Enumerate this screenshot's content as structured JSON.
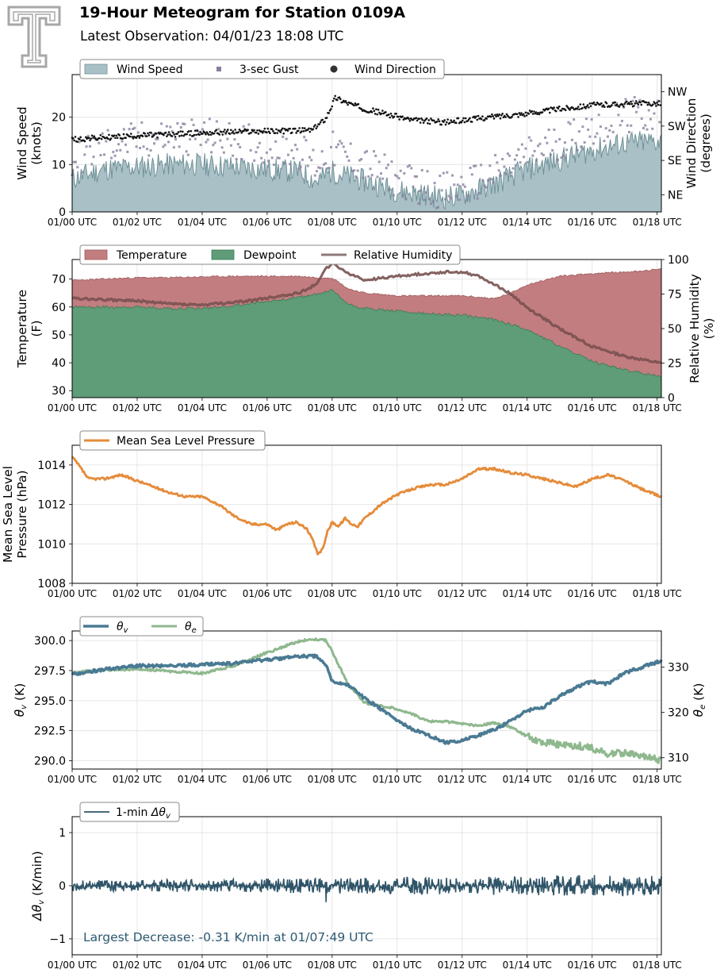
{
  "header": {
    "title": "19-Hour Meteogram for Station 0109A",
    "subtitle": "Latest Observation: 04/01/23 18:08 UTC"
  },
  "x_ticks": [
    "01/00 UTC",
    "01/02 UTC",
    "01/04 UTC",
    "01/06 UTC",
    "01/08 UTC",
    "01/10 UTC",
    "01/12 UTC",
    "01/14 UTC",
    "01/16 UTC",
    "01/18 UTC"
  ],
  "colors": {
    "wind_fill": "#a9c0c6",
    "wind_line": "#6f9198",
    "gust": "#8a7e9e",
    "direction": "#111111",
    "temperature": "#c17d7f",
    "dewpoint": "#5f9c78",
    "rh": "#8c7878",
    "rh_dark": "#6b3a3a",
    "pressure": "#e58b3a",
    "theta_v": "#4a7a93",
    "theta_e": "#8fb88e",
    "dtheta": "#2f5468",
    "annotation": "#2d5a73"
  },
  "chart_data": [
    {
      "id": "wind",
      "type": "area",
      "legend": [
        "Wind Speed",
        "3-sec Gust",
        "Wind Direction"
      ],
      "ylabel": "Wind Speed (knots)",
      "ylabel2": "Wind Direction (degrees)",
      "ylim": [
        0,
        29
      ],
      "yticks": [
        0,
        10,
        20
      ],
      "y2ticks": [
        "NE",
        "SE",
        "SW",
        "NW"
      ],
      "y2lim": [
        0,
        360
      ],
      "y2tick_values": [
        45,
        135,
        225,
        315
      ],
      "xlim": [
        0,
        18.13
      ],
      "series": [
        {
          "name": "Wind Speed",
          "x": [
            0,
            1,
            2,
            3,
            4,
            5,
            6,
            7,
            7.5,
            8,
            9,
            10,
            11,
            11.5,
            12,
            13,
            14,
            15,
            16,
            17,
            18.1
          ],
          "values": [
            7,
            9,
            9.5,
            10,
            10,
            9.5,
            9,
            8.5,
            6.5,
            8.5,
            6.5,
            4.5,
            3.5,
            3,
            3.5,
            6,
            9,
            11,
            13,
            14.5,
            15
          ]
        },
        {
          "name": "3-sec Gust",
          "x": [
            0,
            1,
            2,
            3,
            4,
            5,
            6,
            7,
            7.5,
            8,
            9,
            10,
            11,
            11.5,
            12,
            13,
            14,
            15,
            16,
            17,
            18.1
          ],
          "values": [
            11,
            14,
            15,
            16,
            16,
            15,
            14,
            13,
            10,
            13,
            10,
            7,
            5,
            4.5,
            5,
            8,
            12,
            15,
            18,
            20,
            21
          ]
        },
        {
          "name": "Wind Direction",
          "x": [
            0,
            1,
            2,
            3,
            4,
            5,
            6,
            7,
            7.4,
            7.8,
            8.1,
            8.5,
            9,
            9.5,
            10,
            10.5,
            11,
            11.5,
            12,
            13,
            14,
            15,
            16,
            17,
            18.1
          ],
          "values": [
            190,
            195,
            200,
            203,
            207,
            210,
            212,
            213,
            215,
            245,
            300,
            285,
            270,
            260,
            250,
            240,
            238,
            235,
            240,
            250,
            258,
            270,
            280,
            283,
            285
          ]
        }
      ]
    },
    {
      "id": "temperature",
      "type": "area",
      "legend": [
        "Temperature",
        "Dewpoint",
        "Relative Humidity"
      ],
      "ylabel": "Temperature (F)",
      "ylabel2": "Relative Humidity (%)",
      "ylim": [
        27.5,
        77
      ],
      "yticks": [
        30,
        40,
        50,
        60,
        70
      ],
      "y2lim": [
        0,
        100
      ],
      "y2ticks": [
        0,
        25,
        50,
        75,
        100
      ],
      "xlim": [
        0,
        18.13
      ],
      "series": [
        {
          "name": "Temperature",
          "x": [
            0,
            1,
            2,
            3,
            4,
            5,
            6,
            7,
            7.5,
            8,
            8.5,
            9,
            10,
            11,
            12,
            13,
            13.5,
            14,
            15,
            16,
            17,
            18.1
          ],
          "values": [
            69.5,
            70,
            70.5,
            70.5,
            70.8,
            71,
            71,
            71,
            70.5,
            70.5,
            66.5,
            65,
            64,
            64,
            64,
            63,
            65,
            68,
            71,
            72,
            72.5,
            73.5
          ]
        },
        {
          "name": "Dewpoint",
          "x": [
            0,
            1,
            2,
            3,
            4,
            5,
            6,
            7,
            7.5,
            8,
            8.5,
            9,
            10,
            11,
            12,
            13,
            14,
            15,
            16,
            17,
            18.1
          ],
          "values": [
            60,
            60,
            60,
            59.5,
            59.5,
            60.5,
            62,
            63.5,
            64.5,
            66,
            61,
            59.5,
            58.5,
            57.5,
            57,
            55.5,
            52,
            46,
            40.5,
            37.5,
            35
          ]
        },
        {
          "name": "Relative Humidity",
          "x": [
            0,
            1,
            2,
            3,
            4,
            5,
            6,
            7,
            7.5,
            7.8,
            8,
            8.5,
            9,
            10,
            11,
            11.5,
            12,
            12.5,
            13,
            13.5,
            14,
            15,
            16,
            17,
            18.1
          ],
          "values": [
            72,
            71,
            70,
            68,
            67,
            69,
            72,
            76,
            82,
            93,
            97,
            90,
            85,
            88,
            90,
            91,
            91,
            88,
            82,
            75,
            65,
            50,
            37,
            30,
            25
          ]
        }
      ]
    },
    {
      "id": "pressure",
      "type": "line",
      "legend": [
        "Mean Sea Level Pressure"
      ],
      "ylabel": "Mean Sea Level Pressure (hPa)",
      "ylim": [
        1008,
        1015
      ],
      "yticks": [
        1008,
        1010,
        1012,
        1014
      ],
      "xlim": [
        0,
        18.13
      ],
      "series": [
        {
          "name": "Mean Sea Level Pressure",
          "x": [
            0,
            0.15,
            0.5,
            1,
            1.5,
            2,
            2.5,
            3,
            3.5,
            4,
            4.5,
            5,
            5.5,
            6,
            6.3,
            6.6,
            6.9,
            7.2,
            7.4,
            7.55,
            7.7,
            7.85,
            8,
            8.2,
            8.4,
            8.6,
            8.8,
            9,
            9.5,
            10,
            10.5,
            11,
            11.5,
            12,
            12.5,
            13,
            13.5,
            14,
            14.5,
            15,
            15.5,
            16,
            16.5,
            17,
            17.5,
            18.1
          ],
          "values": [
            1014.4,
            1014.1,
            1013.3,
            1013.3,
            1013.5,
            1013.2,
            1012.9,
            1012.6,
            1012.4,
            1012.4,
            1012.0,
            1011.4,
            1011.0,
            1011.0,
            1010.7,
            1011.0,
            1011.1,
            1010.8,
            1010.2,
            1009.5,
            1009.7,
            1010.6,
            1011.1,
            1010.9,
            1011.3,
            1011.0,
            1010.9,
            1011.3,
            1012.0,
            1012.5,
            1012.8,
            1013.0,
            1013.0,
            1013.3,
            1013.8,
            1013.8,
            1013.6,
            1013.5,
            1013.3,
            1013.1,
            1012.9,
            1013.3,
            1013.5,
            1013.2,
            1012.8,
            1012.4
          ]
        }
      ]
    },
    {
      "id": "theta",
      "type": "line",
      "legend": [
        "θv",
        "θe"
      ],
      "ylabel": "θv (K)",
      "ylabel2": "θe (K)",
      "ylim": [
        289.3,
        300.8
      ],
      "yticks": [
        290.0,
        292.5,
        295.0,
        297.5,
        300.0
      ],
      "y2lim": [
        307.5,
        338.0
      ],
      "y2ticks": [
        310,
        320,
        330
      ],
      "xlim": [
        0,
        18.13
      ],
      "series": [
        {
          "name": "θv",
          "x": [
            0,
            1,
            2,
            3,
            4,
            5,
            6,
            7,
            7.5,
            7.8,
            8,
            8.5,
            9,
            9.5,
            10,
            10.5,
            11,
            11.5,
            12,
            12.5,
            13,
            13.5,
            14,
            14.5,
            15,
            15.5,
            16,
            16.5,
            17,
            18.1
          ],
          "values": [
            297.2,
            297.6,
            297.9,
            297.9,
            298.0,
            298.1,
            298.4,
            298.7,
            298.7,
            298.0,
            296.6,
            296.3,
            295.2,
            294.3,
            293.3,
            292.6,
            292.1,
            291.5,
            291.7,
            292.1,
            292.6,
            293.3,
            294.2,
            294.4,
            295.4,
            296.1,
            296.6,
            296.4,
            297.3,
            298.3
          ]
        },
        {
          "name": "θe",
          "x": [
            0,
            1,
            2,
            3,
            4,
            5,
            6,
            7,
            7.5,
            7.8,
            8,
            8.5,
            9,
            9.5,
            10,
            10.5,
            11,
            11.5,
            12,
            12.5,
            13,
            13.5,
            14,
            14.5,
            15,
            15.5,
            16,
            16.5,
            17,
            18.1
          ],
          "values": [
            328.8,
            329.4,
            329.6,
            329.1,
            328.6,
            330.4,
            333.2,
            335.8,
            336.2,
            336.0,
            333.5,
            326.0,
            322.2,
            321.4,
            320.8,
            319.5,
            318.0,
            318.0,
            317.5,
            317.1,
            317.7,
            316.8,
            314.7,
            313.5,
            313.0,
            312.7,
            312.2,
            310.9,
            311.0,
            309.5
          ]
        }
      ]
    },
    {
      "id": "dtheta",
      "type": "line",
      "legend": [
        "1-min Δθv"
      ],
      "ylabel": "Δθv (K/min)",
      "ylim": [
        -1.3,
        1.3
      ],
      "yticks": [
        -1,
        0,
        1
      ],
      "xlim": [
        0,
        18.13
      ],
      "annotation": "Largest Decrease: -0.31 K/min at 01/07:49 UTC",
      "series": [
        {
          "name": "1-min Δθv",
          "x": [
            0,
            18.13
          ],
          "noise_amplitude": [
            0.1,
            0.2
          ],
          "min": -0.31,
          "min_at": 7.8167
        }
      ]
    }
  ]
}
